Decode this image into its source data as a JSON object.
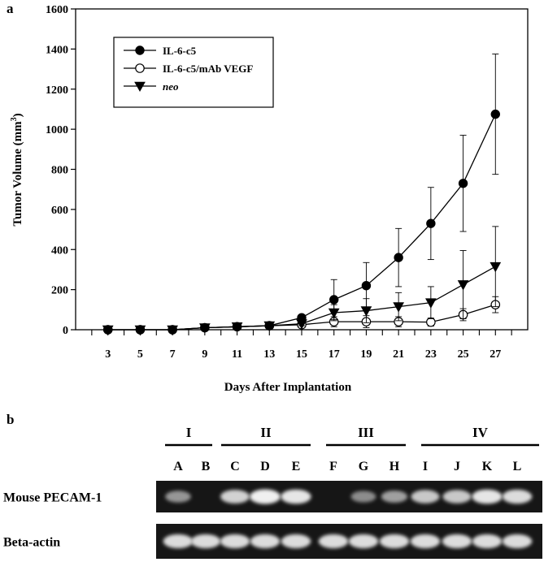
{
  "panel_a_label": "a",
  "panel_b_label": "b",
  "chart_data": {
    "type": "line",
    "xlabel": "Days After Implantation",
    "ylabel": "Tumor Volume (mm",
    "ylabel_superscript": "3",
    "ylabel_suffix": ")",
    "xlim": [
      1,
      29
    ],
    "ylim": [
      0,
      1600
    ],
    "x_ticks": [
      3,
      5,
      7,
      9,
      11,
      13,
      15,
      17,
      19,
      21,
      23,
      25,
      27
    ],
    "y_ticks": [
      0,
      200,
      400,
      600,
      800,
      1000,
      1200,
      1400,
      1600
    ],
    "x": [
      3,
      5,
      7,
      9,
      11,
      13,
      15,
      17,
      19,
      21,
      23,
      25,
      27
    ],
    "legend_position": "top-left",
    "series": [
      {
        "name": "IL-6-c5",
        "marker": "filled-circle",
        "italic": false,
        "values": [
          0,
          0,
          0,
          10,
          15,
          20,
          60,
          150,
          220,
          360,
          530,
          730,
          1075
        ],
        "error": [
          0,
          0,
          0,
          5,
          5,
          5,
          15,
          100,
          115,
          145,
          180,
          240,
          300
        ]
      },
      {
        "name": "IL-6-c5/mAb VEGF",
        "marker": "open-circle",
        "italic": false,
        "values": [
          0,
          0,
          0,
          10,
          15,
          20,
          25,
          40,
          40,
          40,
          38,
          75,
          125
        ],
        "error": [
          0,
          0,
          0,
          5,
          5,
          5,
          10,
          25,
          30,
          25,
          20,
          30,
          40
        ]
      },
      {
        "name": "neo",
        "marker": "filled-triangle-down",
        "italic": true,
        "values": [
          0,
          0,
          0,
          10,
          15,
          20,
          30,
          85,
          95,
          115,
          135,
          225,
          315
        ],
        "error": [
          0,
          0,
          0,
          5,
          5,
          5,
          10,
          40,
          60,
          70,
          80,
          170,
          200
        ]
      }
    ]
  },
  "gel": {
    "groups": [
      {
        "label": "I",
        "lanes": [
          "A",
          "B"
        ]
      },
      {
        "label": "II",
        "lanes": [
          "C",
          "D",
          "E"
        ]
      },
      {
        "label": "III",
        "lanes": [
          "F",
          "G",
          "H"
        ]
      },
      {
        "label": "IV",
        "lanes": [
          "I",
          "J",
          "K",
          "L"
        ]
      }
    ],
    "rows": [
      {
        "label": "Mouse PECAM-1",
        "intensities": [
          0.55,
          0.0,
          0.85,
          1.0,
          0.95,
          0.0,
          0.5,
          0.6,
          0.8,
          0.8,
          0.95,
          0.9
        ]
      },
      {
        "label": "Beta-actin",
        "intensities": [
          0.9,
          0.9,
          0.9,
          0.9,
          0.9,
          0.9,
          0.9,
          0.9,
          0.9,
          0.9,
          0.9,
          0.9
        ]
      }
    ]
  }
}
